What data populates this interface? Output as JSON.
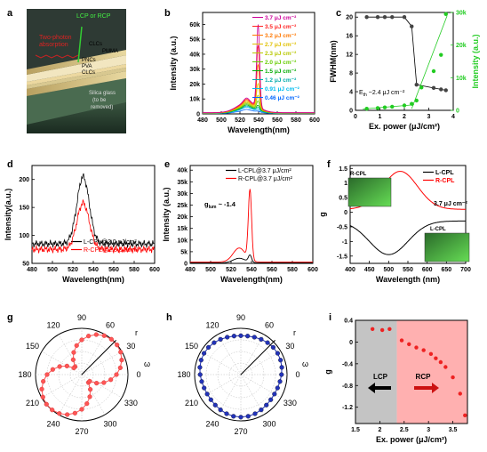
{
  "panels": {
    "a": {
      "label": "a",
      "texts": {
        "two_photon": "Two-photon",
        "absorption": "absorption",
        "lcp_rcp": "LCP or RCP",
        "clcs_top": "CLCs",
        "pmma": "PMMA",
        "pncs": "PNCs",
        "pva": "PVA",
        "clcs_bottom": "CLCs",
        "silica1": "Silica glass",
        "silica2": "(to be",
        "silica3": "removed)"
      }
    },
    "b": {
      "label": "b"
    },
    "c": {
      "label": "c",
      "annotation": "E",
      "annotation_sub": "th",
      "annotation_rest": " ~2.4 μJ cm⁻²"
    },
    "d": {
      "label": "d"
    },
    "e": {
      "label": "e",
      "annotation": "g",
      "annotation_sub": "lum",
      "annotation_rest": " ~ -1.4"
    },
    "f": {
      "label": "f",
      "annotation": "3.7 μJ cm⁻²",
      "inset_top": "R-CPL",
      "inset_bottom": "L-CPL"
    },
    "g": {
      "label": "g",
      "r": "r",
      "omega": "ω"
    },
    "h": {
      "label": "h",
      "r": "r",
      "omega": "ω"
    },
    "i": {
      "label": "i",
      "lcp": "LCP",
      "rcp": "RCP"
    }
  },
  "chart_data": [
    {
      "panel": "b",
      "type": "line",
      "xlabel": "Wavelength(nm)",
      "ylabel": "Intensity (a.u.)",
      "xlim": [
        480,
        600
      ],
      "ylim": [
        0,
        68000
      ],
      "xticks": [
        480,
        500,
        520,
        540,
        560,
        580,
        600
      ],
      "yticks": [
        0,
        10000,
        20000,
        30000,
        40000,
        50000,
        60000
      ],
      "yticklabels": [
        "0",
        "10k",
        "20k",
        "30k",
        "40k",
        "50k",
        "60k"
      ],
      "series": [
        {
          "name": "3.7 μJ cm⁻²",
          "color": "#cc0099",
          "peak": 62000,
          "base": 7000
        },
        {
          "name": "3.5 μJ cm⁻²",
          "color": "#ff2222",
          "peak": 48000,
          "base": 6500
        },
        {
          "name": "3.2 μJ cm⁻²",
          "color": "#ff7700",
          "peak": 35000,
          "base": 6000
        },
        {
          "name": "2.7 μJ cm⁻²",
          "color": "#e0c000",
          "peak": 22000,
          "base": 5500
        },
        {
          "name": "2.3 μJ cm⁻²",
          "color": "#b8c800",
          "peak": 14000,
          "base": 5000
        },
        {
          "name": "2.0 μJ cm⁻²",
          "color": "#66cc00",
          "peak": 10000,
          "base": 4500
        },
        {
          "name": "1.5 μJ cm⁻²",
          "color": "#00aa00",
          "peak": 7000,
          "base": 4000
        },
        {
          "name": "1.2 μJ cm⁻²",
          "color": "#00aaaa",
          "peak": 5500,
          "base": 3500
        },
        {
          "name": "0.91 μJ cm⁻²",
          "color": "#00bbee",
          "peak": 4000,
          "base": 3000
        },
        {
          "name": "0.46 μJ cm⁻²",
          "color": "#0066ff",
          "peak": 2500,
          "base": 2000
        }
      ]
    },
    {
      "panel": "c",
      "type": "scatter",
      "xlabel": "Ex. power (μJ/cm²)",
      "ylabel": "FWHM(nm)",
      "ylabel_right": "Intensity (a.u.)",
      "xlim": [
        0,
        4
      ],
      "ylim": [
        0,
        21
      ],
      "ylim_right": [
        0,
        30000
      ],
      "xticks": [
        0,
        1,
        2,
        3,
        4
      ],
      "yticks": [
        0,
        4,
        8,
        12,
        16,
        20
      ],
      "yticks_right": [
        0,
        10000,
        20000,
        30000
      ],
      "yticklabels_right": [
        "0",
        "10k",
        "20k",
        "30k"
      ],
      "fwhm": {
        "color": "#000000",
        "x": [
          0.46,
          0.91,
          1.2,
          1.5,
          2.0,
          2.3,
          2.5,
          3.2,
          3.5,
          3.7
        ],
        "y": [
          20,
          20,
          20,
          20,
          20,
          18,
          5.5,
          4.8,
          4.5,
          4.3
        ]
      },
      "intensity": {
        "color": "#22cc22",
        "x": [
          0.46,
          0.91,
          1.2,
          1.5,
          2.0,
          2.3,
          2.5,
          2.7,
          3.2,
          3.5,
          3.7
        ],
        "y": [
          500,
          700,
          900,
          1100,
          1500,
          2000,
          3000,
          7000,
          12000,
          17000,
          29500
        ]
      }
    },
    {
      "panel": "d",
      "type": "line",
      "xlabel": "Wavelength(nm)",
      "ylabel": "Intensity(a.u.)",
      "xlim": [
        480,
        600
      ],
      "ylim": [
        50,
        225
      ],
      "xticks": [
        480,
        500,
        520,
        540,
        560,
        580,
        600
      ],
      "yticks": [
        50,
        100,
        150,
        200
      ],
      "series": [
        {
          "name": "L-CPL@2.0 μJ/cm²",
          "color": "#000000",
          "peak": 205,
          "base": 85
        },
        {
          "name": "R-CPL@2.0 μJ/cm²",
          "color": "#ff0000",
          "peak": 158,
          "base": 75
        }
      ]
    },
    {
      "panel": "e",
      "type": "line",
      "xlabel": "Wavelength(nm)",
      "ylabel": "Intensity (a.u.)",
      "xlim": [
        480,
        600
      ],
      "ylim": [
        0,
        42000
      ],
      "xticks": [
        480,
        500,
        520,
        540,
        560,
        580,
        600
      ],
      "yticks": [
        0,
        5000,
        10000,
        15000,
        20000,
        25000,
        30000,
        35000,
        40000
      ],
      "yticklabels": [
        "0",
        "5k",
        "10k",
        "15k",
        "20k",
        "25k",
        "30k",
        "35k",
        "40k"
      ],
      "series": [
        {
          "name": "L-CPL@3.7 μJ/cm²",
          "color": "#000000",
          "peak": 5000,
          "base": 2000
        },
        {
          "name": "R-CPL@3.7 μJ/cm²",
          "color": "#ff0000",
          "peak": 36000,
          "base": 6000
        }
      ]
    },
    {
      "panel": "f",
      "type": "line",
      "xlabel": "Wavelength (nm)",
      "ylabel": "glum",
      "xlim": [
        400,
        700
      ],
      "ylim": [
        -1.75,
        1.6
      ],
      "xticks": [
        400,
        450,
        500,
        550,
        600,
        650,
        700
      ],
      "yticks": [
        -1.5,
        -1.0,
        -0.5,
        0.0,
        0.5,
        1.0,
        1.5
      ],
      "series": [
        {
          "name": "L-CPL",
          "color": "#000000"
        },
        {
          "name": "R-CPL",
          "color": "#ff0000"
        }
      ]
    },
    {
      "panel": "g",
      "type": "scatter",
      "subtype": "polar",
      "color": "#ff5555",
      "angle_ticks": [
        0,
        30,
        60,
        90,
        120,
        150,
        180,
        210,
        240,
        270,
        300,
        330
      ],
      "shape": "figure-eight"
    },
    {
      "panel": "h",
      "type": "scatter",
      "subtype": "polar",
      "color": "#2233bb",
      "angle_ticks": [
        0,
        30,
        60,
        90,
        120,
        150,
        180,
        210,
        240,
        270,
        300,
        330
      ],
      "shape": "circle"
    },
    {
      "panel": "i",
      "type": "scatter",
      "xlabel": "Ex. power (μJ/cm²)",
      "ylabel": "glum",
      "xlim": [
        1.5,
        3.8
      ],
      "ylim": [
        -1.5,
        0.4
      ],
      "xticks": [
        1.5,
        2.0,
        2.5,
        3.0,
        3.5
      ],
      "yticks": [
        -1.2,
        -0.8,
        -0.4,
        0.0,
        0.4
      ],
      "threshold": 2.35,
      "color": "#ee2222",
      "x": [
        1.85,
        2.05,
        2.2,
        2.45,
        2.6,
        2.75,
        2.9,
        3.05,
        3.15,
        3.25,
        3.35,
        3.5,
        3.65,
        3.75
      ],
      "y": [
        0.24,
        0.22,
        0.24,
        0.03,
        -0.04,
        -0.1,
        -0.15,
        -0.22,
        -0.3,
        -0.37,
        -0.46,
        -0.65,
        -0.95,
        -1.35
      ]
    }
  ]
}
